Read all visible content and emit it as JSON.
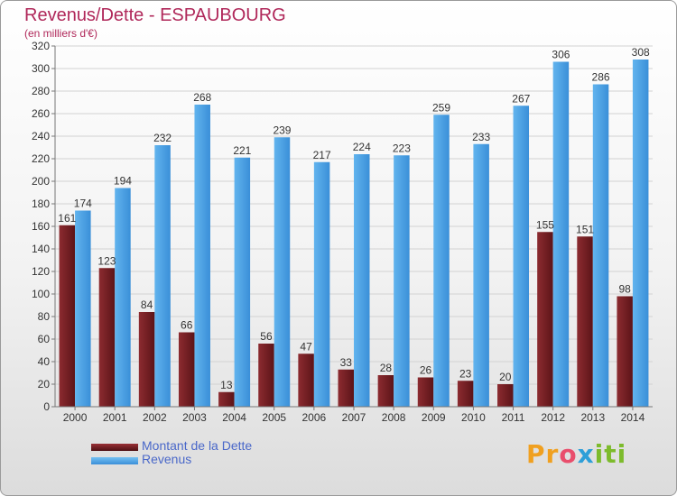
{
  "title": "Revenus/Dette - ESPAUBOURG",
  "subtitle": "(en milliers d'€)",
  "colors": {
    "dette": "#7a2328",
    "revenus": "#4aa3e6",
    "title": "#b0285a",
    "legend_text": "#4a68c9"
  },
  "legend": {
    "dette_label": "Montant de la Dette",
    "revenus_label": "Revenus"
  },
  "logo": {
    "parts": [
      "Pr",
      "o",
      "x",
      "iti"
    ]
  },
  "chart_data": {
    "type": "bar",
    "categories": [
      "2000",
      "2001",
      "2002",
      "2003",
      "2004",
      "2005",
      "2006",
      "2007",
      "2008",
      "2009",
      "2010",
      "2011",
      "2012",
      "2013",
      "2014"
    ],
    "series": [
      {
        "name": "Montant de la Dette",
        "values": [
          161,
          123,
          84,
          66,
          13,
          56,
          47,
          33,
          28,
          26,
          23,
          20,
          155,
          151,
          98
        ]
      },
      {
        "name": "Revenus",
        "values": [
          174,
          194,
          232,
          268,
          221,
          239,
          217,
          224,
          223,
          259,
          233,
          267,
          306,
          286,
          308
        ]
      }
    ],
    "ylim": [
      0,
      320
    ],
    "yticks": [
      0,
      20,
      40,
      60,
      80,
      100,
      120,
      140,
      160,
      180,
      200,
      220,
      240,
      260,
      280,
      300,
      320
    ],
    "grid": true,
    "legend_position": "bottom-left"
  }
}
